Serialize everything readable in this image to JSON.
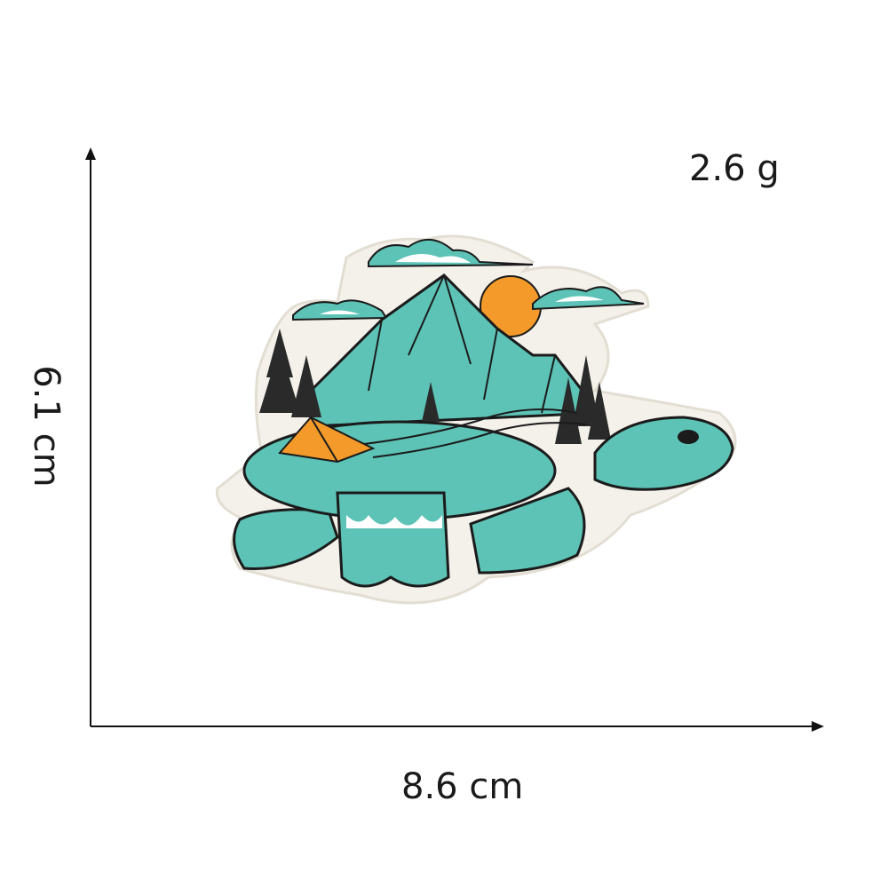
{
  "labels": {
    "weight": "2.6 g",
    "height": "6.1 cm",
    "width": "8.6 cm"
  },
  "colors": {
    "teal": "#5cc3b6",
    "teal_dark": "#3e9e92",
    "orange": "#f39a2a",
    "outline": "#1b1b1b",
    "felt": "#f4f1ea",
    "tree": "#2a2a2a",
    "cloud_white": "#ffffff"
  },
  "image": {
    "subject": "embroidered-turtle-patch"
  }
}
